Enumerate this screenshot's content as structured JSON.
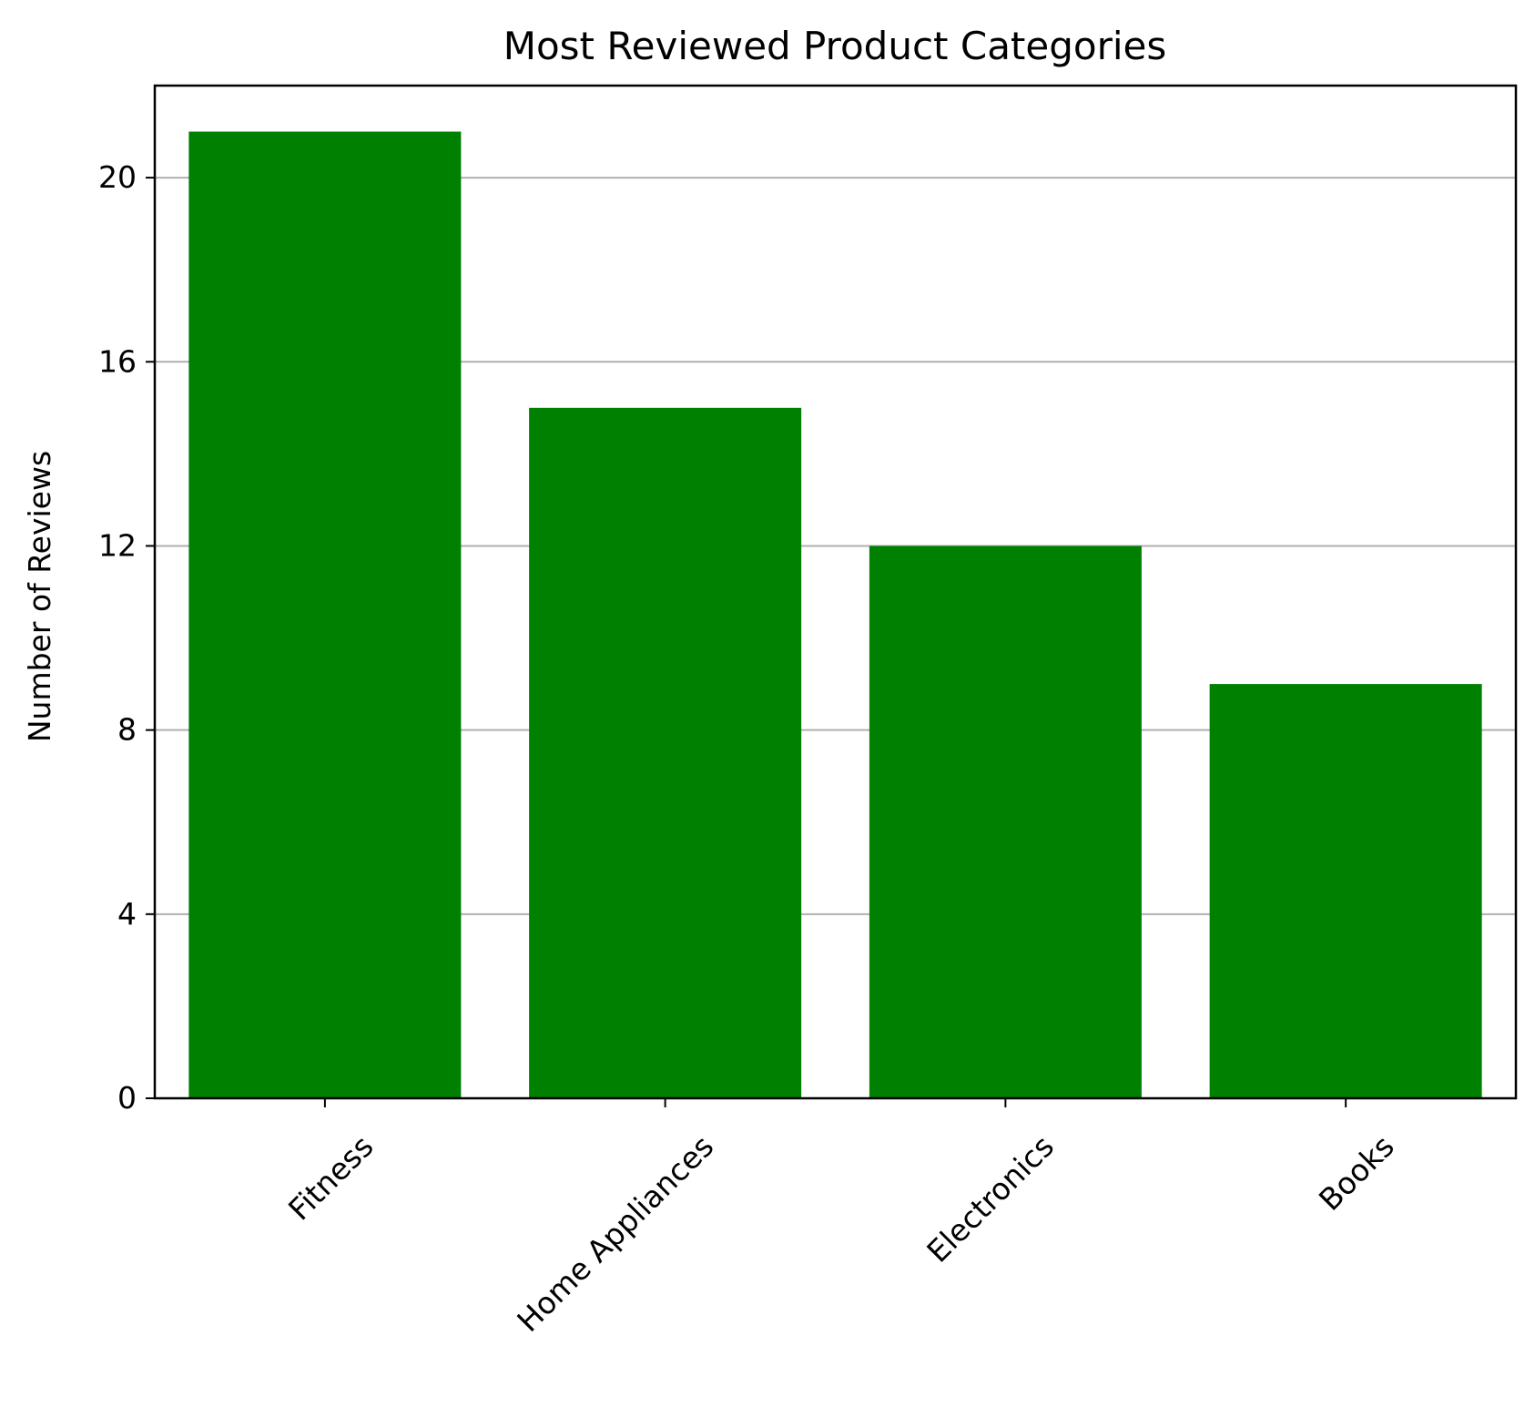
{
  "chart_data": {
    "type": "bar",
    "title": "Most Reviewed Product Categories",
    "xlabel": "",
    "ylabel": "Number of Reviews",
    "categories": [
      "Fitness",
      "Home Appliances",
      "Electronics",
      "Books"
    ],
    "values": [
      21,
      15,
      12,
      9
    ],
    "ylim": [
      0,
      22
    ],
    "yticks": [
      0,
      4,
      8,
      12,
      16,
      20
    ],
    "grid": "y",
    "bar_color": "#008000",
    "grid_color": "#b0b0b0",
    "xtick_rotation_deg": 45
  }
}
